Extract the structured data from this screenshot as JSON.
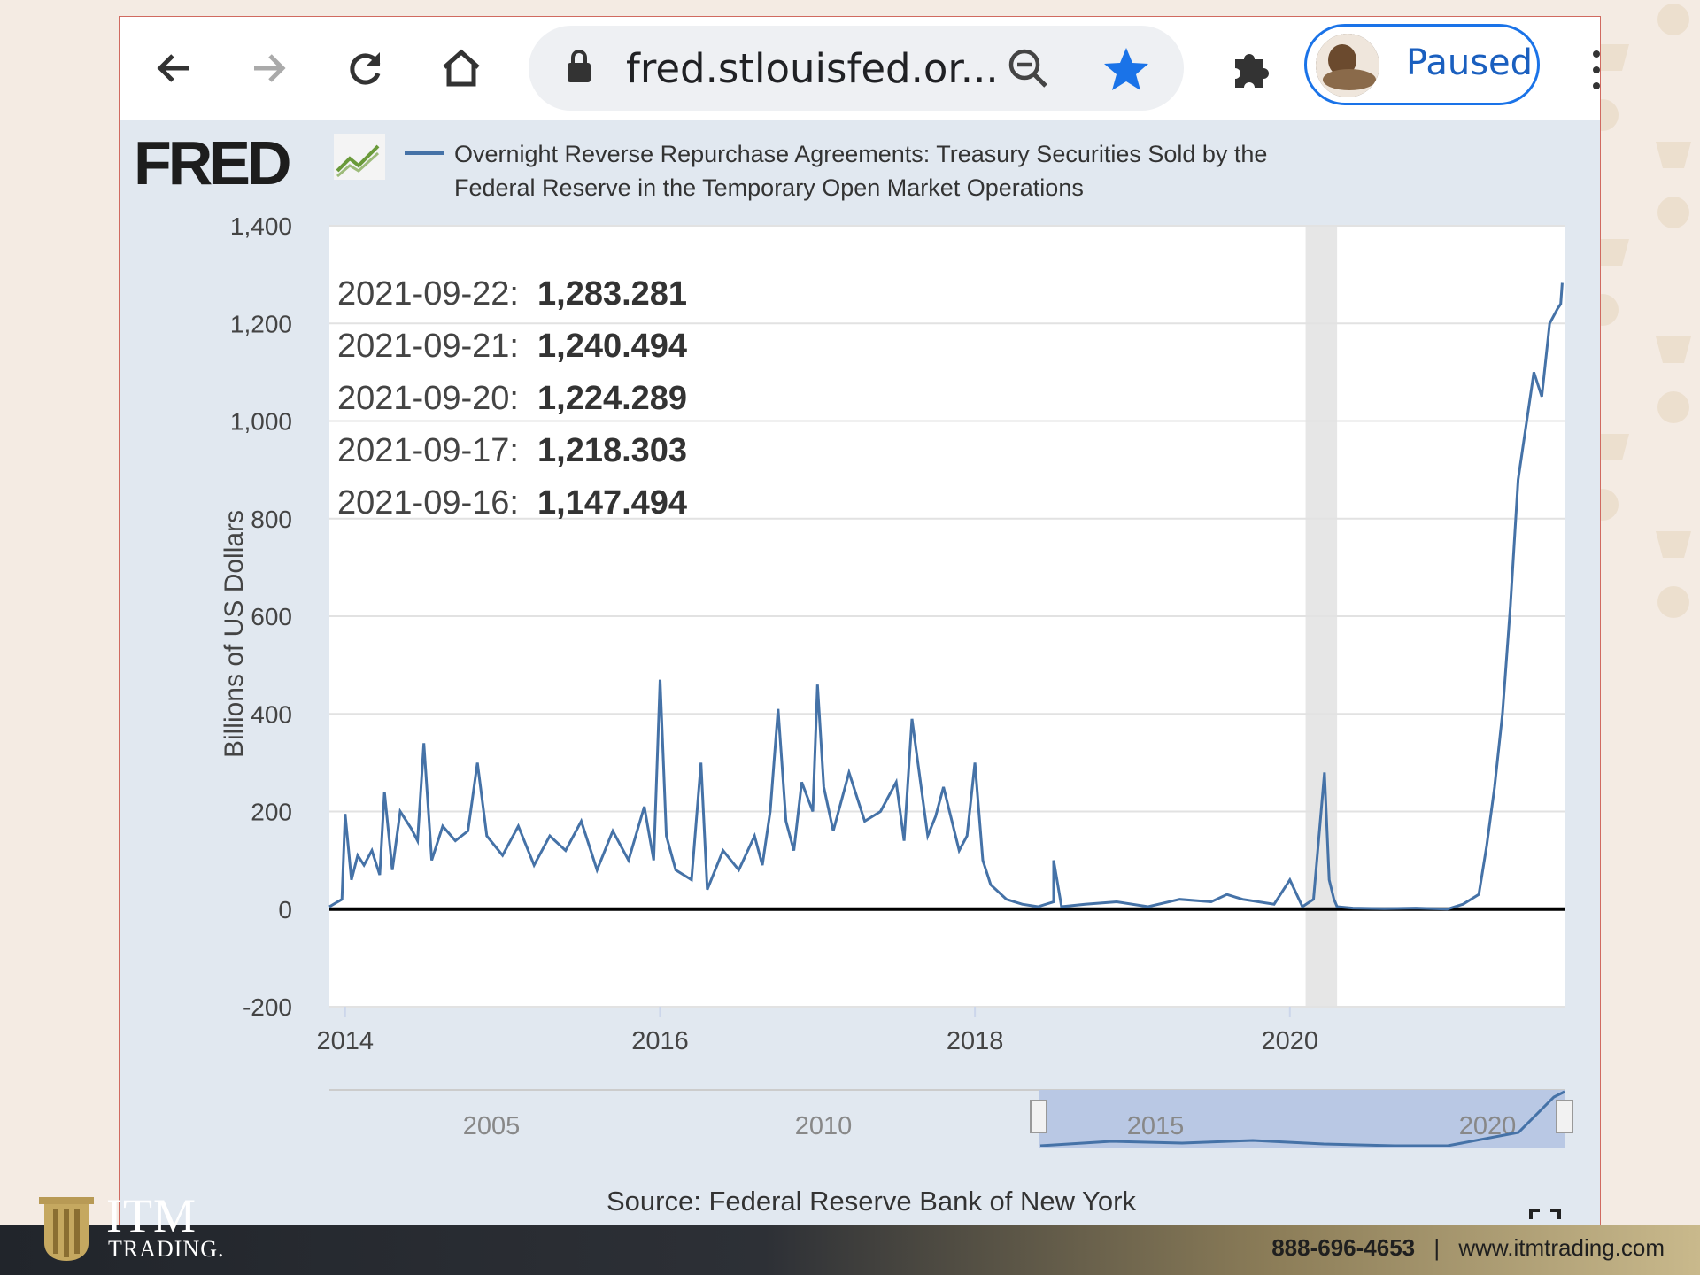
{
  "browser": {
    "url": "fred.stlouisfed.or...",
    "profile_status": "Paused",
    "icons": [
      "back-arrow-icon",
      "forward-arrow-icon",
      "reload-icon",
      "home-icon",
      "lock-icon",
      "zoom-out-icon",
      "star-icon",
      "extensions-icon",
      "more-icon"
    ]
  },
  "fred": {
    "logo": "FRED",
    "series_title_line1": "Overnight Reverse Repurchase Agreements: Treasury Securities Sold by the",
    "series_title_line2": "Federal Reserve in the Temporary Open Market Operations",
    "source": "Source: Federal Reserve Bank of New York"
  },
  "tooltip": [
    {
      "date": "2021-09-22:",
      "value": "1,283.281"
    },
    {
      "date": "2021-09-21:",
      "value": "1,240.494"
    },
    {
      "date": "2021-09-20:",
      "value": "1,224.289"
    },
    {
      "date": "2021-09-17:",
      "value": "1,218.303"
    },
    {
      "date": "2021-09-16:",
      "value": "1,147.494"
    }
  ],
  "chart_data": {
    "type": "line",
    "title": "Overnight Reverse Repurchase Agreements: Treasury Securities Sold by the Federal Reserve in the Temporary Open Market Operations",
    "ylabel": "Billions of US Dollars",
    "xlabel": "",
    "ylim": [
      -200,
      1400
    ],
    "xlim": [
      2013.9,
      2021.75
    ],
    "yticks": [
      "1,400",
      "1,200",
      "1,000",
      "800",
      "600",
      "400",
      "200",
      "0",
      "-200"
    ],
    "ytick_values": [
      1400,
      1200,
      1000,
      800,
      600,
      400,
      200,
      0,
      -200
    ],
    "xticks": [
      "2014",
      "2016",
      "2018",
      "2020"
    ],
    "xtick_values": [
      2014,
      2016,
      2018,
      2020
    ],
    "grid": true,
    "recession_band": [
      2020.1,
      2020.3
    ],
    "series": [
      {
        "color": "#4572a7",
        "x": [
          2013.9,
          2013.98,
          2014.0,
          2014.04,
          2014.08,
          2014.12,
          2014.17,
          2014.22,
          2014.25,
          2014.3,
          2014.35,
          2014.42,
          2014.46,
          2014.5,
          2014.55,
          2014.62,
          2014.7,
          2014.78,
          2014.84,
          2014.9,
          2015.0,
          2015.1,
          2015.2,
          2015.3,
          2015.4,
          2015.5,
          2015.6,
          2015.7,
          2015.8,
          2015.9,
          2015.96,
          2016.0,
          2016.04,
          2016.1,
          2016.2,
          2016.26,
          2016.3,
          2016.4,
          2016.5,
          2016.6,
          2016.65,
          2016.7,
          2016.75,
          2016.8,
          2016.85,
          2016.9,
          2016.97,
          2017.0,
          2017.04,
          2017.1,
          2017.2,
          2017.3,
          2017.4,
          2017.5,
          2017.55,
          2017.6,
          2017.7,
          2017.75,
          2017.8,
          2017.9,
          2017.95,
          2018.0,
          2018.05,
          2018.1,
          2018.2,
          2018.3,
          2018.4,
          2018.5,
          2018.5,
          2018.55,
          2018.7,
          2018.9,
          2019.1,
          2019.3,
          2019.5,
          2019.6,
          2019.7,
          2019.9,
          2020.0,
          2020.08,
          2020.15,
          2020.22,
          2020.25,
          2020.28,
          2020.3,
          2020.4,
          2020.6,
          2020.8,
          2021.0,
          2021.1,
          2021.2,
          2021.25,
          2021.3,
          2021.35,
          2021.4,
          2021.45,
          2021.5,
          2021.55,
          2021.6,
          2021.65,
          2021.7,
          2021.72,
          2021.73
        ],
        "y": [
          5,
          20,
          195,
          60,
          110,
          90,
          120,
          70,
          240,
          80,
          200,
          165,
          140,
          340,
          100,
          170,
          140,
          160,
          300,
          150,
          110,
          170,
          90,
          150,
          120,
          180,
          80,
          160,
          100,
          210,
          100,
          470,
          150,
          80,
          60,
          300,
          40,
          120,
          80,
          150,
          90,
          200,
          410,
          180,
          120,
          260,
          200,
          460,
          250,
          160,
          280,
          180,
          200,
          260,
          140,
          390,
          150,
          190,
          250,
          120,
          150,
          300,
          100,
          50,
          20,
          10,
          5,
          15,
          100,
          5,
          10,
          15,
          5,
          20,
          15,
          30,
          20,
          10,
          60,
          5,
          20,
          280,
          60,
          20,
          5,
          2,
          1,
          2,
          0,
          10,
          30,
          130,
          250,
          400,
          620,
          880,
          990,
          1100,
          1050,
          1200,
          1230,
          1240,
          1283
        ]
      }
    ]
  },
  "navigator": {
    "labels": [
      "2005",
      "2010",
      "2015",
      "2020"
    ]
  },
  "footer": {
    "brand": "ITM",
    "brand_sub": "TRADING.",
    "phone": "888-696-4653",
    "separator": "|",
    "website": "www.itmtrading.com"
  }
}
